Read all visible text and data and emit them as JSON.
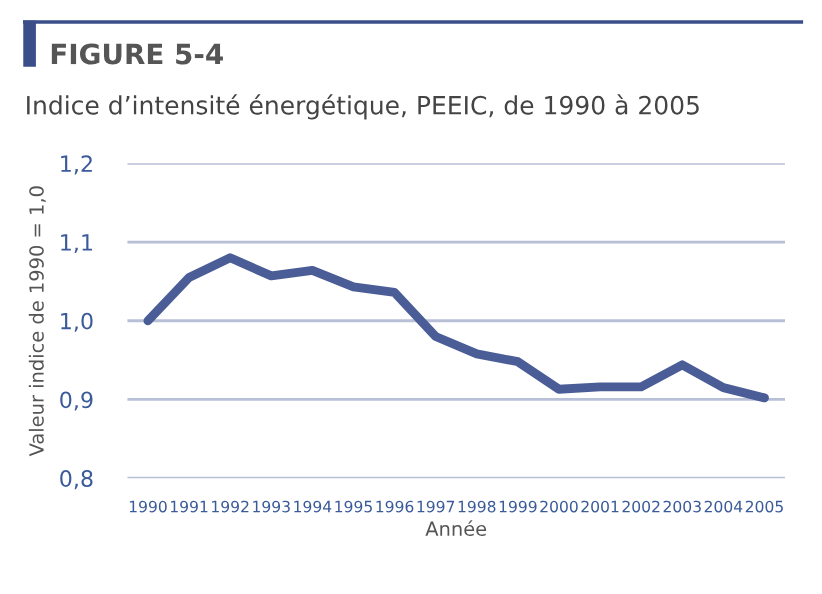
{
  "chart_data": {
    "type": "line",
    "title": "FIGURE 5-4",
    "subtitle": "Indice d’intensité énergétique, PEEIC, de 1990 à 2005",
    "xlabel": "Année",
    "ylabel": "Valeur indice de 1990 = 1,0",
    "categories": [
      "1990",
      "1991",
      "1992",
      "1993",
      "1994",
      "1995",
      "1996",
      "1997",
      "1998",
      "1999",
      "2000",
      "2001",
      "2002",
      "2003",
      "2004",
      "2005"
    ],
    "series": [
      {
        "color": "#4a5d96",
        "values": [
          1.0,
          1.055,
          1.08,
          1.057,
          1.064,
          1.043,
          1.036,
          0.98,
          0.958,
          0.948,
          0.913,
          0.916,
          0.916,
          0.944,
          0.915,
          0.902
        ]
      }
    ],
    "ylim": [
      0.8,
      1.2
    ],
    "yticks": [
      {
        "value": 0.8,
        "label": "0,8"
      },
      {
        "value": 0.9,
        "label": "0,9"
      },
      {
        "value": 1.0,
        "label": "1,0"
      },
      {
        "value": 1.1,
        "label": "1,1"
      },
      {
        "value": 1.2,
        "label": "1,2"
      }
    ],
    "grid": "y",
    "legend": false,
    "marker": "none",
    "line_style": "solid"
  }
}
